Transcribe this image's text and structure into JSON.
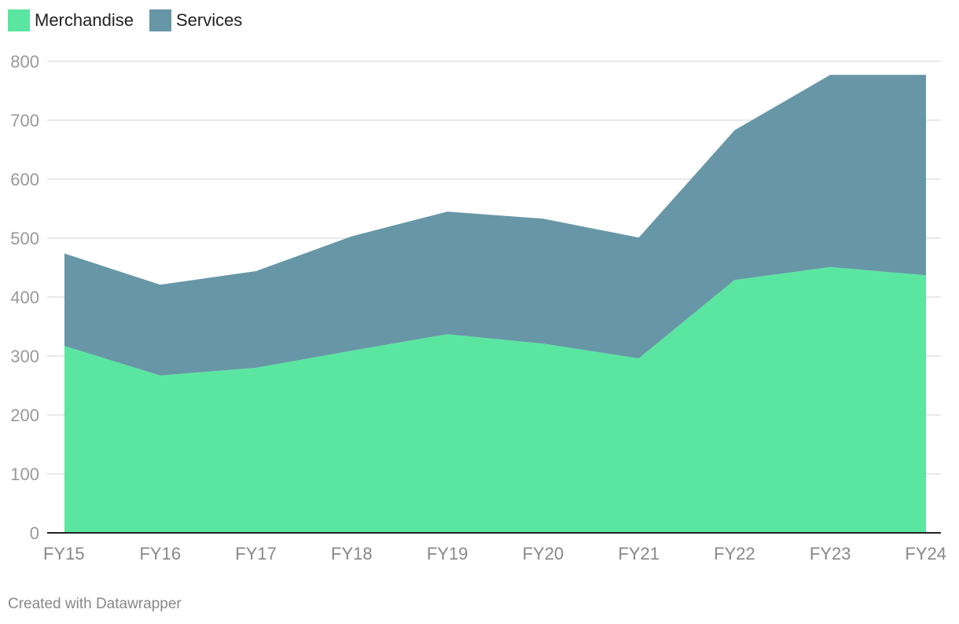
{
  "chart_data": {
    "type": "area",
    "stacked": true,
    "categories": [
      "FY15",
      "FY16",
      "FY17",
      "FY18",
      "FY19",
      "FY20",
      "FY21",
      "FY22",
      "FY23",
      "FY24"
    ],
    "series": [
      {
        "name": "Merchandise",
        "color": "#5ae6a0",
        "values": [
          317,
          267,
          280,
          309,
          337,
          321,
          296,
          429,
          451,
          437
        ]
      },
      {
        "name": "Services",
        "color": "#6797a6",
        "values": [
          157,
          154,
          164,
          194,
          208,
          212,
          205,
          254,
          326,
          340
        ]
      }
    ],
    "ylim": [
      0,
      800
    ],
    "yticks": [
      0,
      100,
      200,
      300,
      400,
      500,
      600,
      700,
      800
    ],
    "grid": true,
    "legend": "top-left",
    "title": "",
    "xlabel": "",
    "ylabel": ""
  },
  "legend": {
    "merchandise_label": "Merchandise",
    "services_label": "Services",
    "merchandise_color": "#5ae6a0",
    "services_color": "#6797a6"
  },
  "footer": {
    "credit": "Created with Datawrapper"
  }
}
